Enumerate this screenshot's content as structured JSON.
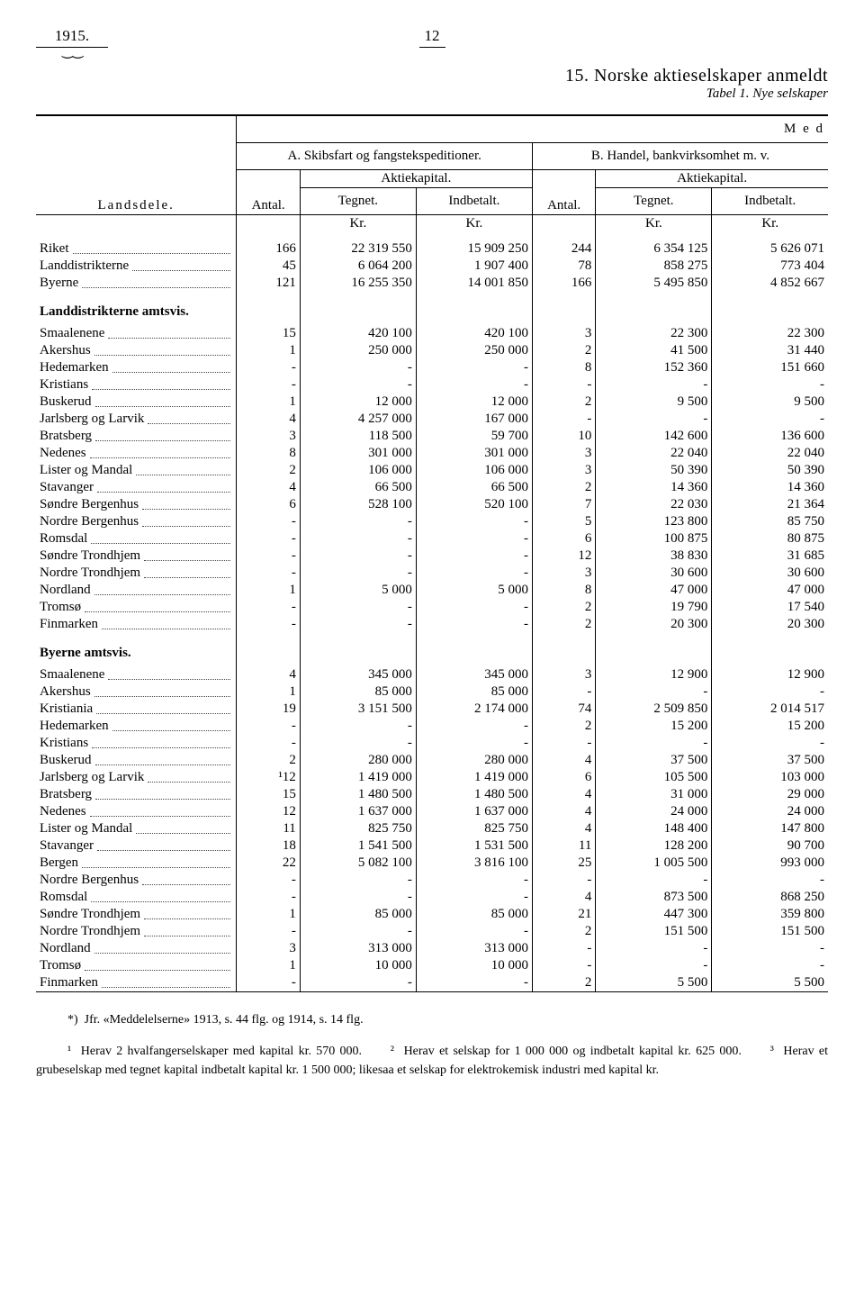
{
  "header": {
    "year": "1915.",
    "page": "12",
    "title_number": "15.",
    "title_main": "Norske aktieselskaper anmeldt",
    "subtitle": "Tabel 1.   Nye selskaper"
  },
  "col_headers": {
    "med": "M e d",
    "landsdele": "Landsdele.",
    "section_a": "A.  Skibsfart og fangstekspeditioner.",
    "section_b": "B.  Handel, bankvirksomhet m. v.",
    "aktiekapital": "Aktiekapital.",
    "antal": "Antal.",
    "tegnet": "Tegnet.",
    "indbetalt": "Indbetalt.",
    "kr": "Kr."
  },
  "top_rows": [
    {
      "label": "Riket",
      "a_ant": "166",
      "a_teg": "22 319 550",
      "a_ind": "15 909 250",
      "b_ant": "244",
      "b_teg": "6 354 125",
      "b_ind": "5 626 071"
    },
    {
      "label": "Landdistrikterne",
      "a_ant": "45",
      "a_teg": "6 064 200",
      "a_ind": "1 907 400",
      "b_ant": "78",
      "b_teg": "858 275",
      "b_ind": "773 404"
    },
    {
      "label": "Byerne",
      "a_ant": "121",
      "a_teg": "16 255 350",
      "a_ind": "14 001 850",
      "b_ant": "166",
      "b_teg": "5 495 850",
      "b_ind": "4 852 667"
    }
  ],
  "section1_title": "Landdistrikterne amtsvis.",
  "section1_rows": [
    {
      "label": "Smaalenene",
      "a_ant": "15",
      "a_teg": "420 100",
      "a_ind": "420 100",
      "b_ant": "3",
      "b_teg": "22 300",
      "b_ind": "22 300"
    },
    {
      "label": "Akershus",
      "a_ant": "1",
      "a_teg": "250 000",
      "a_ind": "250 000",
      "b_ant": "2",
      "b_teg": "41 500",
      "b_ind": "31 440"
    },
    {
      "label": "Hedemarken",
      "a_ant": "-",
      "a_teg": "-",
      "a_ind": "-",
      "b_ant": "8",
      "b_teg": "152 360",
      "b_ind": "151 660"
    },
    {
      "label": "Kristians",
      "a_ant": "-",
      "a_teg": "-",
      "a_ind": "-",
      "b_ant": "-",
      "b_teg": "-",
      "b_ind": "-"
    },
    {
      "label": "Buskerud",
      "a_ant": "1",
      "a_teg": "12 000",
      "a_ind": "12 000",
      "b_ant": "2",
      "b_teg": "9 500",
      "b_ind": "9 500"
    },
    {
      "label": "Jarlsberg og Larvik",
      "a_ant": "4",
      "a_teg": "4 257 000",
      "a_ind": "167 000",
      "b_ant": "-",
      "b_teg": "-",
      "b_ind": "-"
    },
    {
      "label": "Bratsberg",
      "a_ant": "3",
      "a_teg": "118 500",
      "a_ind": "59 700",
      "b_ant": "10",
      "b_teg": "142 600",
      "b_ind": "136 600"
    },
    {
      "label": "Nedenes",
      "a_ant": "8",
      "a_teg": "301 000",
      "a_ind": "301 000",
      "b_ant": "3",
      "b_teg": "22 040",
      "b_ind": "22 040"
    },
    {
      "label": "Lister og Mandal",
      "a_ant": "2",
      "a_teg": "106 000",
      "a_ind": "106 000",
      "b_ant": "3",
      "b_teg": "50 390",
      "b_ind": "50 390"
    },
    {
      "label": "Stavanger",
      "a_ant": "4",
      "a_teg": "66 500",
      "a_ind": "66 500",
      "b_ant": "2",
      "b_teg": "14 360",
      "b_ind": "14 360"
    },
    {
      "label": "Søndre Bergenhus",
      "a_ant": "6",
      "a_teg": "528 100",
      "a_ind": "520 100",
      "b_ant": "7",
      "b_teg": "22 030",
      "b_ind": "21 364"
    },
    {
      "label": "Nordre Bergenhus",
      "a_ant": "-",
      "a_teg": "-",
      "a_ind": "-",
      "b_ant": "5",
      "b_teg": "123 800",
      "b_ind": "85 750"
    },
    {
      "label": "Romsdal",
      "a_ant": "-",
      "a_teg": "-",
      "a_ind": "-",
      "b_ant": "6",
      "b_teg": "100 875",
      "b_ind": "80 875"
    },
    {
      "label": "Søndre Trondhjem",
      "a_ant": "-",
      "a_teg": "-",
      "a_ind": "-",
      "b_ant": "12",
      "b_teg": "38 830",
      "b_ind": "31 685"
    },
    {
      "label": "Nordre Trondhjem",
      "a_ant": "-",
      "a_teg": "-",
      "a_ind": "-",
      "b_ant": "3",
      "b_teg": "30 600",
      "b_ind": "30 600"
    },
    {
      "label": "Nordland",
      "a_ant": "1",
      "a_teg": "5 000",
      "a_ind": "5 000",
      "b_ant": "8",
      "b_teg": "47 000",
      "b_ind": "47 000"
    },
    {
      "label": "Tromsø",
      "a_ant": "-",
      "a_teg": "-",
      "a_ind": "-",
      "b_ant": "2",
      "b_teg": "19 790",
      "b_ind": "17 540"
    },
    {
      "label": "Finmarken",
      "a_ant": "-",
      "a_teg": "-",
      "a_ind": "-",
      "b_ant": "2",
      "b_teg": "20 300",
      "b_ind": "20 300"
    }
  ],
  "section2_title": "Byerne amtsvis.",
  "section2_rows": [
    {
      "label": "Smaalenene",
      "a_ant": "4",
      "a_teg": "345 000",
      "a_ind": "345 000",
      "b_ant": "3",
      "b_teg": "12 900",
      "b_ind": "12 900"
    },
    {
      "label": "Akershus",
      "a_ant": "1",
      "a_teg": "85 000",
      "a_ind": "85 000",
      "b_ant": "-",
      "b_teg": "-",
      "b_ind": "-"
    },
    {
      "label": "Kristiania",
      "a_ant": "19",
      "a_teg": "3 151 500",
      "a_ind": "2 174 000",
      "b_ant": "74",
      "b_teg": "2 509 850",
      "b_ind": "2 014 517"
    },
    {
      "label": "Hedemarken",
      "a_ant": "-",
      "a_teg": "-",
      "a_ind": "-",
      "b_ant": "2",
      "b_teg": "15 200",
      "b_ind": "15 200"
    },
    {
      "label": "Kristians",
      "a_ant": "-",
      "a_teg": "-",
      "a_ind": "-",
      "b_ant": "-",
      "b_teg": "-",
      "b_ind": "-"
    },
    {
      "label": "Buskerud",
      "a_ant": "2",
      "a_teg": "280 000",
      "a_ind": "280 000",
      "b_ant": "4",
      "b_teg": "37 500",
      "b_ind": "37 500"
    },
    {
      "label": "Jarlsberg og Larvik",
      "a_ant": "¹12",
      "a_teg": "1 419 000",
      "a_ind": "1 419 000",
      "b_ant": "6",
      "b_teg": "105 500",
      "b_ind": "103 000"
    },
    {
      "label": "Bratsberg",
      "a_ant": "15",
      "a_teg": "1 480 500",
      "a_ind": "1 480 500",
      "b_ant": "4",
      "b_teg": "31 000",
      "b_ind": "29 000"
    },
    {
      "label": "Nedenes",
      "a_ant": "12",
      "a_teg": "1 637 000",
      "a_ind": "1 637 000",
      "b_ant": "4",
      "b_teg": "24 000",
      "b_ind": "24 000"
    },
    {
      "label": "Lister og Mandal",
      "a_ant": "11",
      "a_teg": "825 750",
      "a_ind": "825 750",
      "b_ant": "4",
      "b_teg": "148 400",
      "b_ind": "147 800"
    },
    {
      "label": "Stavanger",
      "a_ant": "18",
      "a_teg": "1 541 500",
      "a_ind": "1 531 500",
      "b_ant": "11",
      "b_teg": "128 200",
      "b_ind": "90 700"
    },
    {
      "label": "Bergen",
      "a_ant": "22",
      "a_teg": "5 082 100",
      "a_ind": "3 816 100",
      "b_ant": "25",
      "b_teg": "1 005 500",
      "b_ind": "993 000"
    },
    {
      "label": "Nordre Bergenhus",
      "a_ant": "-",
      "a_teg": "-",
      "a_ind": "-",
      "b_ant": "-",
      "b_teg": "-",
      "b_ind": "-"
    },
    {
      "label": "Romsdal",
      "a_ant": "-",
      "a_teg": "-",
      "a_ind": "-",
      "b_ant": "4",
      "b_teg": "873 500",
      "b_ind": "868 250"
    },
    {
      "label": "Søndre Trondhjem",
      "a_ant": "1",
      "a_teg": "85 000",
      "a_ind": "85 000",
      "b_ant": "21",
      "b_teg": "447 300",
      "b_ind": "359 800"
    },
    {
      "label": "Nordre Trondhjem",
      "a_ant": "-",
      "a_teg": "-",
      "a_ind": "-",
      "b_ant": "2",
      "b_teg": "151 500",
      "b_ind": "151 500"
    },
    {
      "label": "Nordland",
      "a_ant": "3",
      "a_teg": "313 000",
      "a_ind": "313 000",
      "b_ant": "-",
      "b_teg": "-",
      "b_ind": "-"
    },
    {
      "label": "Tromsø",
      "a_ant": "1",
      "a_teg": "10 000",
      "a_ind": "10 000",
      "b_ant": "-",
      "b_teg": "-",
      "b_ind": "-"
    },
    {
      "label": "Finmarken",
      "a_ant": "-",
      "a_teg": "-",
      "a_ind": "-",
      "b_ant": "2",
      "b_teg": "5 500",
      "b_ind": "5 500"
    }
  ],
  "footnote": "*) Jfr. «Meddelelserne» 1913, s. 44 flg. og 1914, s. 14 flg.\n¹ Herav 2 hvalfangerselskaper med kapital kr. 570 000.     ² Herav et selskap for 1 000 000 og indbetalt kapital kr. 625 000.     ³ Herav et grubeselskap med tegnet kapital indbetalt kapital kr. 1 500 000; likesaa et selskap for elektrokemisk industri med kapital kr."
}
